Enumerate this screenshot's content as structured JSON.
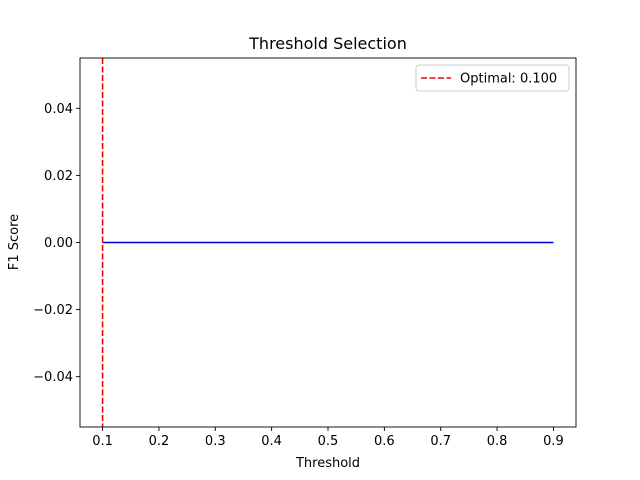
{
  "chart_data": {
    "type": "line",
    "title": "Threshold Selection",
    "xlabel": "Threshold",
    "ylabel": "F1 Score",
    "xlim": [
      0.06,
      0.94
    ],
    "ylim": [
      -0.055,
      0.055
    ],
    "xticks": [
      0.1,
      0.2,
      0.3,
      0.4,
      0.5,
      0.6,
      0.7,
      0.8,
      0.9
    ],
    "xtick_labels": [
      "0.1",
      "0.2",
      "0.3",
      "0.4",
      "0.5",
      "0.6",
      "0.7",
      "0.8",
      "0.9"
    ],
    "yticks": [
      -0.04,
      -0.02,
      0.0,
      0.02,
      0.04
    ],
    "ytick_labels": [
      "−0.04",
      "−0.02",
      "0.00",
      "0.02",
      "0.04"
    ],
    "grid": false,
    "series": [
      {
        "x": [
          0.1,
          0.9
        ],
        "y": [
          0.0,
          0.0
        ],
        "color": "#0000cc",
        "style": "solid"
      }
    ],
    "vlines": [
      {
        "x": 0.1,
        "name": "Optimal: 0.100",
        "color": "#ff0000",
        "style": "dashed"
      }
    ],
    "legend": {
      "placement": "top-right",
      "entries": [
        "Optimal: 0.100"
      ]
    }
  }
}
